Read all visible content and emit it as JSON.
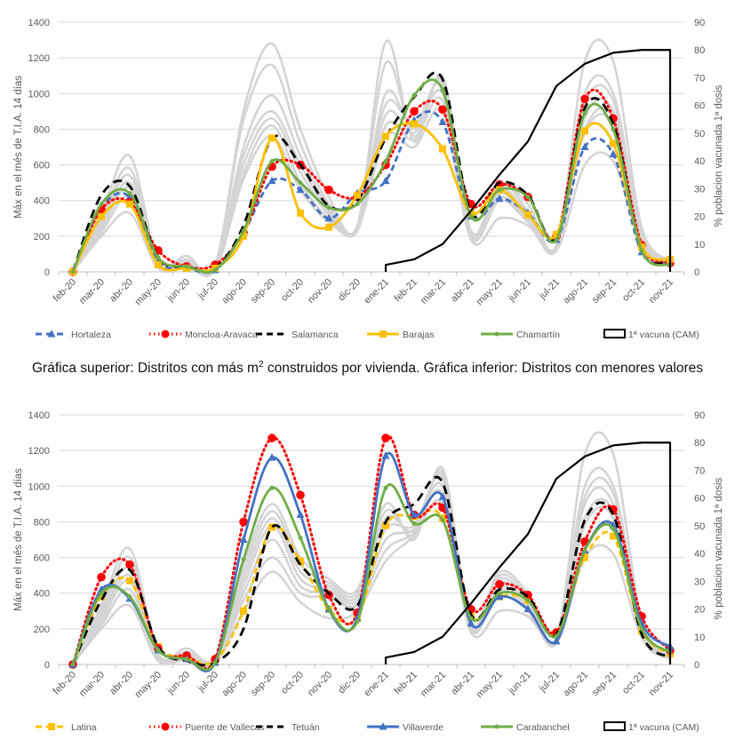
{
  "caption": {
    "part1": "Gráfica superior: Distritos con más m",
    "sup": "2",
    "part2": " construidos por vivienda. Gráfica inferior: Distritos con menores valores"
  },
  "chart_data": [
    {
      "type": "line",
      "id": "top",
      "title": "",
      "ylabel": "Máx en el més de T.I.A. 14 días",
      "y2label": "% poblacion vacunada 1ª dosis",
      "ylim": [
        0,
        1400
      ],
      "y2lim": [
        0,
        90
      ],
      "yticks": [
        "0",
        "200",
        "400",
        "600",
        "800",
        "1000",
        "1200",
        "1400"
      ],
      "y2ticks": [
        "0",
        "10",
        "20",
        "30",
        "40",
        "50",
        "60",
        "70",
        "80",
        "90"
      ],
      "grid": true,
      "legend_position": "bottom",
      "categories": [
        "feb-20",
        "mar-20",
        "abr-20",
        "may-20",
        "jun-20",
        "jul-20",
        "ago-20",
        "sep-20",
        "oct-20",
        "nov-20",
        "dic-20",
        "ene-21",
        "feb-21",
        "mar-21",
        "abr-21",
        "may-21",
        "jun-21",
        "jul-21",
        "ago-21",
        "sep-21",
        "oct-21",
        "nov-21"
      ],
      "series": [
        {
          "name": "Hortaleza",
          "color": "#4472C4",
          "style": "dashed",
          "marker": "triangle",
          "axis": "left",
          "values": [
            0,
            360,
            420,
            60,
            20,
            10,
            220,
            510,
            460,
            300,
            440,
            510,
            850,
            840,
            310,
            410,
            330,
            180,
            700,
            660,
            110,
            50
          ]
        },
        {
          "name": "Moncloa-Aravaca",
          "color": "#FF0000",
          "style": "dotted",
          "marker": "circle",
          "axis": "left",
          "values": [
            0,
            350,
            390,
            120,
            30,
            40,
            220,
            590,
            600,
            460,
            420,
            600,
            900,
            910,
            380,
            490,
            420,
            200,
            970,
            860,
            150,
            50
          ]
        },
        {
          "name": "Salamanca",
          "color": "#000000",
          "style": "longdash",
          "marker": "none",
          "axis": "left",
          "values": [
            0,
            430,
            480,
            80,
            30,
            20,
            260,
            750,
            600,
            370,
            400,
            750,
            980,
            1080,
            330,
            500,
            430,
            190,
            920,
            830,
            120,
            60
          ]
        },
        {
          "name": "Barajas",
          "color": "#FFC000",
          "style": "solid",
          "marker": "square",
          "axis": "left",
          "values": [
            0,
            310,
            380,
            40,
            20,
            20,
            200,
            750,
            330,
            250,
            430,
            760,
            830,
            690,
            330,
            460,
            320,
            210,
            790,
            720,
            140,
            70
          ]
        },
        {
          "name": "Chamartín",
          "color": "#70AD47",
          "style": "solid",
          "marker": "plus",
          "axis": "left",
          "values": [
            0,
            380,
            440,
            80,
            30,
            10,
            230,
            620,
            500,
            360,
            380,
            620,
            990,
            1020,
            310,
            460,
            420,
            180,
            890,
            800,
            120,
            40
          ]
        },
        {
          "name": "1ª vacuna (CAM)",
          "color": "#000000",
          "style": "solid",
          "marker": "none",
          "axis": "right",
          "values": [
            null,
            null,
            null,
            null,
            null,
            null,
            null,
            null,
            null,
            null,
            null,
            2.5,
            4.5,
            10,
            22,
            35,
            47,
            67,
            75,
            79,
            80,
            80
          ]
        }
      ],
      "background_series": [
        [
          0,
          330,
          650,
          60,
          90,
          40,
          900,
          1280,
          800,
          420,
          260,
          1290,
          730,
          1100,
          230,
          480,
          380,
          150,
          1180,
          1180,
          250,
          60
        ],
        [
          0,
          300,
          580,
          50,
          70,
          30,
          850,
          1160,
          720,
          380,
          250,
          1170,
          760,
          1080,
          220,
          500,
          340,
          140,
          1000,
          1000,
          220,
          50
        ],
        [
          0,
          280,
          540,
          40,
          60,
          20,
          700,
          990,
          650,
          360,
          240,
          1000,
          800,
          1060,
          210,
          470,
          320,
          140,
          940,
          960,
          200,
          40
        ],
        [
          0,
          260,
          500,
          40,
          50,
          20,
          650,
          900,
          600,
          340,
          240,
          940,
          820,
          1040,
          200,
          440,
          300,
          130,
          860,
          900,
          180,
          40
        ],
        [
          0,
          240,
          470,
          30,
          40,
          20,
          600,
          860,
          560,
          320,
          230,
          880,
          780,
          1000,
          200,
          420,
          290,
          130,
          800,
          860,
          170,
          40
        ],
        [
          0,
          220,
          420,
          30,
          30,
          10,
          550,
          820,
          500,
          300,
          230,
          820,
          740,
          960,
          190,
          400,
          280,
          120,
          780,
          820,
          160,
          30
        ],
        [
          0,
          200,
          330,
          20,
          30,
          10,
          520,
          760,
          460,
          280,
          240,
          760,
          700,
          900,
          180,
          300,
          260,
          120,
          600,
          620,
          150,
          30
        ]
      ]
    },
    {
      "type": "line",
      "id": "bottom",
      "title": "",
      "ylabel": "Máx en el més de T.I.A. 14 días",
      "y2label": "% poblacion vacunada 1ª dosis",
      "ylim": [
        0,
        1400
      ],
      "y2lim": [
        0,
        90
      ],
      "yticks": [
        "0",
        "200",
        "400",
        "600",
        "800",
        "1000",
        "1200",
        "1400"
      ],
      "y2ticks": [
        "0",
        "10",
        "20",
        "30",
        "40",
        "50",
        "60",
        "70",
        "80",
        "90"
      ],
      "grid": true,
      "legend_position": "bottom",
      "categories": [
        "feb-20",
        "mar-20",
        "abr-20",
        "may-20",
        "jun-20",
        "jul-20",
        "ago-20",
        "sep-20",
        "oct-20",
        "nov-20",
        "dic-20",
        "ene-21",
        "feb-21",
        "mar-21",
        "abr-21",
        "may-21",
        "jun-21",
        "jul-21",
        "ago-21",
        "sep-21",
        "oct-21",
        "nov-21"
      ],
      "series": [
        {
          "name": "Latina",
          "color": "#FFC000",
          "style": "dashed",
          "marker": "square",
          "axis": "left",
          "values": [
            0,
            380,
            470,
            100,
            40,
            20,
            300,
            770,
            580,
            310,
            260,
            780,
            830,
            820,
            270,
            380,
            360,
            170,
            600,
            720,
            190,
            60
          ]
        },
        {
          "name": "Puente de Vallecas",
          "color": "#FF0000",
          "style": "dotted",
          "marker": "circle",
          "axis": "left",
          "values": [
            0,
            490,
            560,
            90,
            50,
            30,
            800,
            1270,
            950,
            390,
            290,
            1270,
            840,
            880,
            310,
            450,
            390,
            180,
            690,
            870,
            270,
            80
          ]
        },
        {
          "name": "Tetuán",
          "color": "#000000",
          "style": "longdash",
          "marker": "none",
          "axis": "left",
          "values": [
            0,
            360,
            530,
            100,
            20,
            10,
            200,
            770,
            560,
            400,
            330,
            800,
            900,
            1020,
            280,
            420,
            380,
            170,
            810,
            840,
            170,
            40
          ]
        },
        {
          "name": "Villaverde",
          "color": "#4472C4",
          "style": "solid",
          "marker": "triangle",
          "axis": "left",
          "values": [
            0,
            420,
            370,
            80,
            30,
            10,
            700,
            1160,
            840,
            310,
            260,
            1170,
            840,
            940,
            230,
            380,
            310,
            130,
            640,
            780,
            230,
            100
          ]
        },
        {
          "name": "Carabanchel",
          "color": "#70AD47",
          "style": "solid",
          "marker": "plus",
          "axis": "left",
          "values": [
            0,
            400,
            380,
            80,
            30,
            10,
            590,
            990,
            710,
            310,
            240,
            990,
            790,
            810,
            260,
            400,
            360,
            160,
            640,
            760,
            200,
            70
          ]
        },
        {
          "name": "1ª vacuna (CAM)",
          "color": "#000000",
          "style": "solid",
          "marker": "none",
          "axis": "right",
          "values": [
            null,
            null,
            null,
            null,
            null,
            null,
            null,
            null,
            null,
            null,
            null,
            2.5,
            4.5,
            10,
            22,
            35,
            47,
            67,
            75,
            79,
            80,
            80
          ]
        }
      ],
      "background_series": [
        [
          0,
          330,
          650,
          60,
          90,
          40,
          560,
          900,
          600,
          480,
          420,
          900,
          700,
          1100,
          230,
          520,
          400,
          150,
          1180,
          1180,
          250,
          60
        ],
        [
          0,
          300,
          600,
          50,
          70,
          30,
          520,
          860,
          560,
          460,
          400,
          860,
          720,
          1080,
          220,
          500,
          380,
          140,
          1000,
          1000,
          220,
          50
        ],
        [
          0,
          280,
          540,
          40,
          60,
          20,
          480,
          820,
          520,
          440,
          380,
          820,
          750,
          1060,
          210,
          480,
          360,
          140,
          940,
          960,
          200,
          40
        ],
        [
          0,
          260,
          500,
          40,
          50,
          20,
          440,
          780,
          480,
          420,
          360,
          760,
          780,
          1040,
          200,
          460,
          340,
          130,
          900,
          900,
          180,
          40
        ],
        [
          0,
          240,
          470,
          30,
          40,
          20,
          400,
          700,
          440,
          400,
          340,
          700,
          760,
          1000,
          200,
          440,
          320,
          130,
          820,
          860,
          170,
          40
        ],
        [
          0,
          220,
          420,
          30,
          30,
          10,
          360,
          600,
          400,
          380,
          330,
          640,
          740,
          960,
          190,
          420,
          300,
          120,
          780,
          820,
          160,
          30
        ],
        [
          0,
          200,
          330,
          20,
          30,
          10,
          300,
          520,
          350,
          260,
          300,
          580,
          720,
          900,
          180,
          300,
          270,
          120,
          600,
          620,
          150,
          30
        ]
      ]
    }
  ]
}
